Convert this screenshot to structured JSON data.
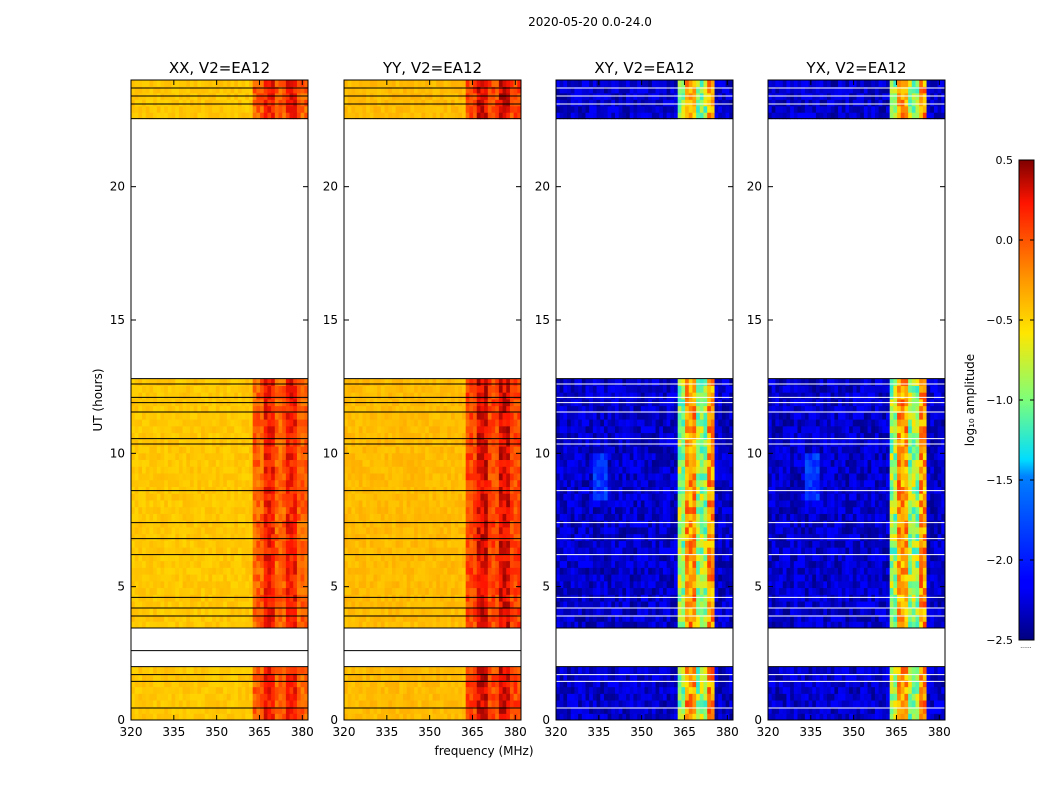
{
  "chart_data": {
    "type": "heatmap",
    "suptitle": "2020-05-20 0.0-24.0",
    "xlabel": "frequency (MHz)",
    "ylabel": "UT (hours)",
    "xlim": [
      320,
      382
    ],
    "ylim": [
      0,
      24
    ],
    "xticks": [
      320,
      335,
      350,
      365,
      380
    ],
    "yticks": [
      0,
      5,
      10,
      15,
      20
    ],
    "data_intervals_hours": [
      [
        0.0,
        2.0
      ],
      [
        3.45,
        12.8
      ],
      [
        22.55,
        24.0
      ]
    ],
    "gap_lines_hours": [
      0.45,
      1.45,
      1.7,
      2.6,
      3.45,
      3.9,
      4.2,
      4.6,
      6.2,
      6.8,
      7.4,
      8.6,
      10.35,
      10.55,
      11.55,
      11.9,
      12.1,
      12.6,
      23.1,
      23.4,
      23.7
    ],
    "panels": [
      {
        "title": "XX, V2=EA12",
        "pol": "XX",
        "base_log_amp": -0.45,
        "high_band_log_amp": 0.05,
        "band_mhz": [
          362,
          382
        ]
      },
      {
        "title": "YY, V2=EA12",
        "pol": "YY",
        "base_log_amp": -0.4,
        "high_band_log_amp": 0.15,
        "band_mhz": [
          362,
          382
        ]
      },
      {
        "title": "XY, V2=EA12",
        "pol": "XY",
        "base_log_amp": -2.3,
        "high_band_log_amp": -0.8,
        "band_mhz": [
          362,
          376
        ]
      },
      {
        "title": "YX, V2=EA12",
        "pol": "YX",
        "base_log_amp": -2.3,
        "high_band_log_amp": -0.8,
        "band_mhz": [
          362,
          376
        ]
      }
    ],
    "colorbar": {
      "label": "log₁₀ amplitude",
      "range": [
        -2.5,
        0.5
      ],
      "ticks": [
        0.5,
        0.0,
        -0.5,
        -1.0,
        -1.5,
        -2.0,
        -2.5
      ],
      "tick_labels": [
        "0.5",
        "0.0",
        "−0.5",
        "−1.0",
        "−1.5",
        "−2.0",
        "−2.5"
      ],
      "colormap": "jet",
      "footer": "......"
    }
  }
}
